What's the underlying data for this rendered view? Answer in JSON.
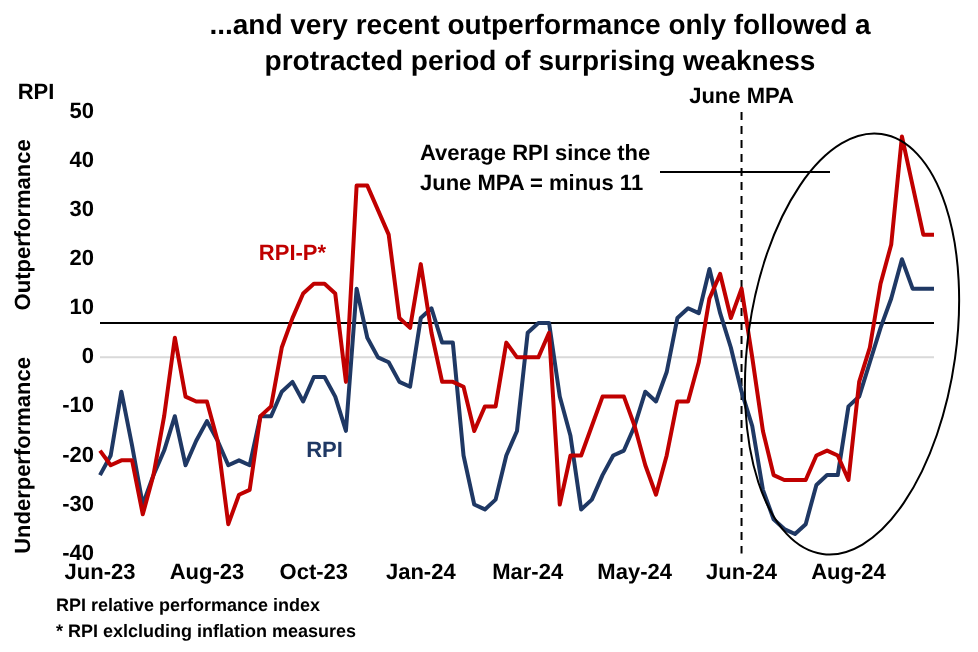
{
  "chart_data": {
    "type": "line",
    "title": "...and very recent outperformance only followed a protracted period of surprising weakness",
    "ylabel": "RPI",
    "categories": [
      "Jun-23",
      null,
      null,
      null,
      null,
      null,
      null,
      null,
      null,
      null,
      "Aug-23",
      null,
      null,
      null,
      null,
      null,
      null,
      null,
      null,
      null,
      "Oct-23",
      null,
      null,
      null,
      null,
      null,
      null,
      null,
      null,
      null,
      "Jan-24",
      null,
      null,
      null,
      null,
      null,
      null,
      null,
      null,
      null,
      "Mar-24",
      null,
      null,
      null,
      null,
      null,
      null,
      null,
      null,
      null,
      "May-24",
      null,
      null,
      null,
      null,
      null,
      null,
      null,
      null,
      null,
      "Jun-24",
      null,
      null,
      null,
      null,
      null,
      null,
      null,
      null,
      null,
      "Aug-24",
      null,
      null,
      null,
      null,
      null,
      null,
      null,
      null
    ],
    "ylim": [
      -40,
      50
    ],
    "yticks": [
      -40,
      -30,
      -20,
      -10,
      0,
      10,
      20,
      30,
      40,
      50
    ],
    "series": [
      {
        "name": "RPI-P*",
        "color": "#c00000",
        "values": [
          -19,
          -22,
          -21,
          -21,
          -32,
          -24,
          -12,
          4,
          -8,
          -9,
          -9,
          -17,
          -34,
          -28,
          -27,
          -12,
          -10,
          2,
          8,
          13,
          15,
          15,
          13,
          -5,
          35,
          35,
          30,
          25,
          8,
          6,
          19,
          5,
          -5,
          -5,
          -6,
          -15,
          -10,
          -10,
          3,
          0,
          0,
          0,
          5,
          -30,
          -20,
          -20,
          -14,
          -8,
          -8,
          -8,
          -14,
          -22,
          -28,
          -20,
          -9,
          -9,
          -1,
          12,
          17,
          8,
          14,
          0,
          -15,
          -24,
          -25,
          -25,
          -25,
          -20,
          -19,
          -20,
          -25,
          -5,
          2,
          15,
          23,
          45,
          35,
          25,
          25
        ]
      },
      {
        "name": "RPI",
        "color": "#1f3864",
        "values": [
          -24,
          -20,
          -7,
          -18,
          -30,
          -24,
          -19,
          -12,
          -22,
          -17,
          -13,
          -17,
          -22,
          -21,
          -22,
          -12,
          -12,
          -7,
          -5,
          -9,
          -4,
          -4,
          -8,
          -15,
          14,
          4,
          0,
          -1,
          -5,
          -6,
          8,
          10,
          3,
          3,
          -20,
          -30,
          -31,
          -29,
          -20,
          -15,
          5,
          7,
          7,
          -8,
          -16,
          -31,
          -29,
          -24,
          -20,
          -19,
          -14,
          -7,
          -9,
          -3,
          8,
          10,
          9,
          18,
          9,
          2,
          -7,
          -14,
          -27,
          -33,
          -35,
          -36,
          -34,
          -26,
          -24,
          -24,
          -10,
          -8,
          -1,
          6,
          12,
          20,
          14,
          14,
          14
        ]
      }
    ],
    "ref_lines": [
      {
        "axis": "y",
        "value": 0,
        "color": "#d9d9d9"
      },
      {
        "axis": "y",
        "value": 7,
        "color": "#000000"
      },
      {
        "axis": "x",
        "value": "Jun-24",
        "label": "June MPA",
        "color": "#000000",
        "line_style": "dashed"
      }
    ],
    "annotations": [
      "Average RPI since the June MPA = minus 11",
      "Outperformance",
      "Underperformance",
      "RPI relative performance index",
      "* RPI exlcluding inflation measures"
    ],
    "grid": false,
    "legend": false
  }
}
